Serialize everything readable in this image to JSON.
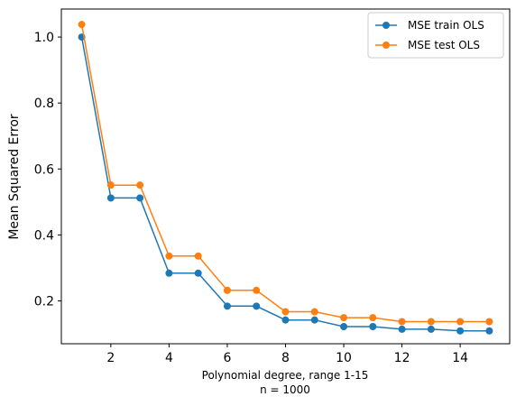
{
  "chart_data": {
    "type": "line",
    "title": "",
    "xlabel": "Polynomial degree, range 1-15",
    "xlabel_line2": "n = 1000",
    "ylabel": "Mean Squared Error",
    "xlim": [
      0.3,
      15.7
    ],
    "ylim": [
      0.07,
      1.085
    ],
    "xticks": [
      2,
      4,
      6,
      8,
      10,
      12,
      14
    ],
    "yticks": [
      0.2,
      0.4,
      0.6,
      0.8,
      1.0
    ],
    "ytick_labels": [
      "0.2",
      "0.4",
      "0.6",
      "0.8",
      "1.0"
    ],
    "grid": false,
    "legend_position": "top-right",
    "x": [
      1,
      2,
      3,
      4,
      5,
      6,
      7,
      8,
      9,
      10,
      11,
      12,
      13,
      14,
      15
    ],
    "series": [
      {
        "name": "MSE train OLS",
        "color": "#1f77b4",
        "values": [
          1.0,
          0.512,
          0.512,
          0.284,
          0.284,
          0.184,
          0.184,
          0.142,
          0.142,
          0.122,
          0.122,
          0.114,
          0.114,
          0.109,
          0.109
        ]
      },
      {
        "name": "MSE test OLS",
        "color": "#ff7f0e",
        "values": [
          1.038,
          0.551,
          0.551,
          0.336,
          0.336,
          0.232,
          0.232,
          0.167,
          0.167,
          0.149,
          0.149,
          0.137,
          0.137,
          0.137,
          0.137
        ]
      }
    ]
  }
}
